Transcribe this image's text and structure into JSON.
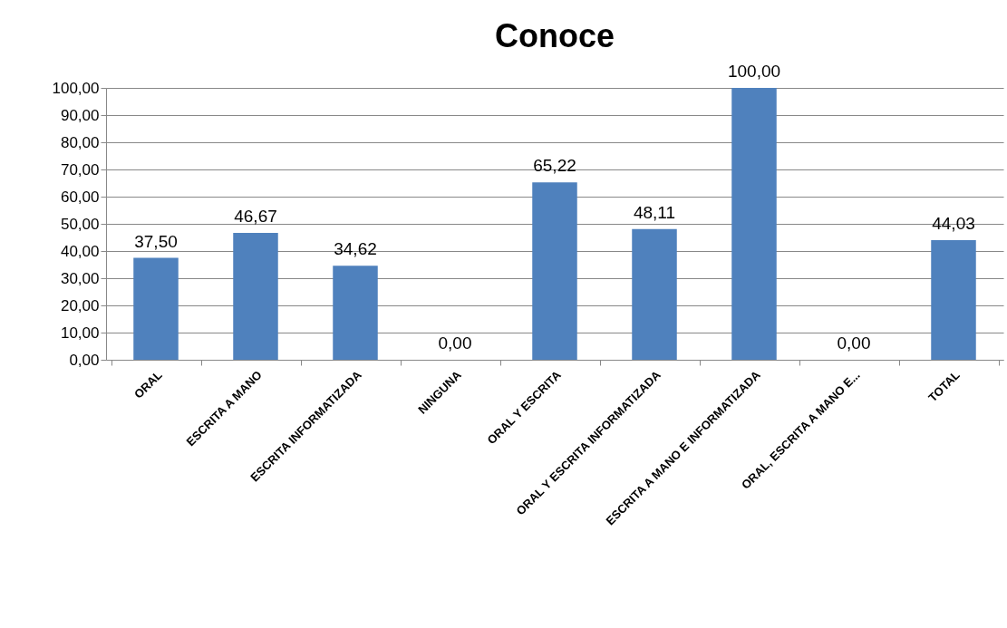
{
  "chart_data": {
    "type": "bar",
    "title": "Conoce",
    "categories": [
      "ORAL",
      "ESCRITA A MANO",
      "ESCRITA INFORMATIZADA",
      "NINGUNA",
      "ORAL Y ESCRITA",
      "ORAL Y ESCRITA INFORMATIZADA",
      "ESCRITA A MANO E INFORMATIZADA",
      "ORAL, ESCRITA A MANO E...",
      "TOTAL"
    ],
    "values": [
      37.5,
      46.67,
      34.62,
      0,
      65.22,
      48.11,
      100,
      0,
      44.03
    ],
    "value_labels": [
      "37,50",
      "46,67",
      "34,62",
      "0,00",
      "65,22",
      "48,11",
      "100,00",
      "0,00",
      "44,03"
    ],
    "color": "#4f81bd",
    "ylim": [
      0,
      100
    ],
    "yticks": [
      {
        "value": 0,
        "label": "0,00"
      },
      {
        "value": 10,
        "label": "10,00"
      },
      {
        "value": 20,
        "label": "20,00"
      },
      {
        "value": 30,
        "label": "30,00"
      },
      {
        "value": 40,
        "label": "40,00"
      },
      {
        "value": 50,
        "label": "50,00"
      },
      {
        "value": 60,
        "label": "60,00"
      },
      {
        "value": 70,
        "label": "70,00"
      },
      {
        "value": 80,
        "label": "80,00"
      },
      {
        "value": 90,
        "label": "90,00"
      },
      {
        "value": 100,
        "label": "100,00"
      }
    ],
    "grid": "y"
  }
}
